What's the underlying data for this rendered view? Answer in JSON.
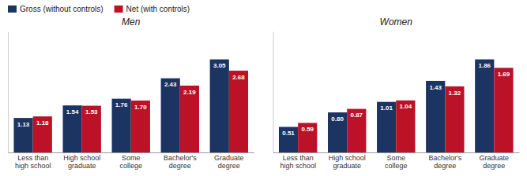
{
  "chart_data": [
    {
      "type": "bar",
      "title": "Men",
      "categories": [
        "Less than\nhigh school",
        "High school\ngraduate",
        "Some\ncollege",
        "Bachelor's\ndegree",
        "Graduate\ndegree"
      ],
      "series": [
        {
          "name": "Gross (without controls)",
          "color": "#1c3461",
          "values": [
            1.13,
            1.54,
            1.76,
            2.43,
            3.05
          ],
          "value_labels": [
            "1.13",
            "1.54",
            "1.76",
            "2.43",
            "3.05"
          ]
        },
        {
          "name": "Net (with controls)",
          "color": "#bc1228",
          "values": [
            1.18,
            1.53,
            1.7,
            2.19,
            2.68
          ],
          "value_labels": [
            "1.18",
            "1.53",
            "1.70",
            "2.19",
            "2.68"
          ]
        }
      ],
      "ylim": [
        0,
        3.965
      ],
      "data_labels": true,
      "tick_labels": "x",
      "legend": "upper left"
    },
    {
      "type": "bar",
      "title": "Women",
      "categories": [
        "Less than\nhigh school",
        "High school\ngraduate",
        "Some\ncollege",
        "Bachelor's\ndegree",
        "Graduate\ndegree"
      ],
      "series": [
        {
          "name": "Gross (without controls)",
          "color": "#1c3461",
          "values": [
            0.51,
            0.8,
            1.01,
            1.43,
            1.86
          ],
          "value_labels": [
            "0.51",
            "0.80",
            "1.01",
            "1.43",
            "1.86"
          ]
        },
        {
          "name": "Net (with controls)",
          "color": "#bc1228",
          "values": [
            0.59,
            0.87,
            1.04,
            1.32,
            1.69
          ],
          "value_labels": [
            "0.59",
            "0.87",
            "1.04",
            "1.32",
            "1.69"
          ]
        }
      ],
      "ylim": [
        0,
        2.418
      ],
      "data_labels": true,
      "tick_labels": "x"
    }
  ]
}
